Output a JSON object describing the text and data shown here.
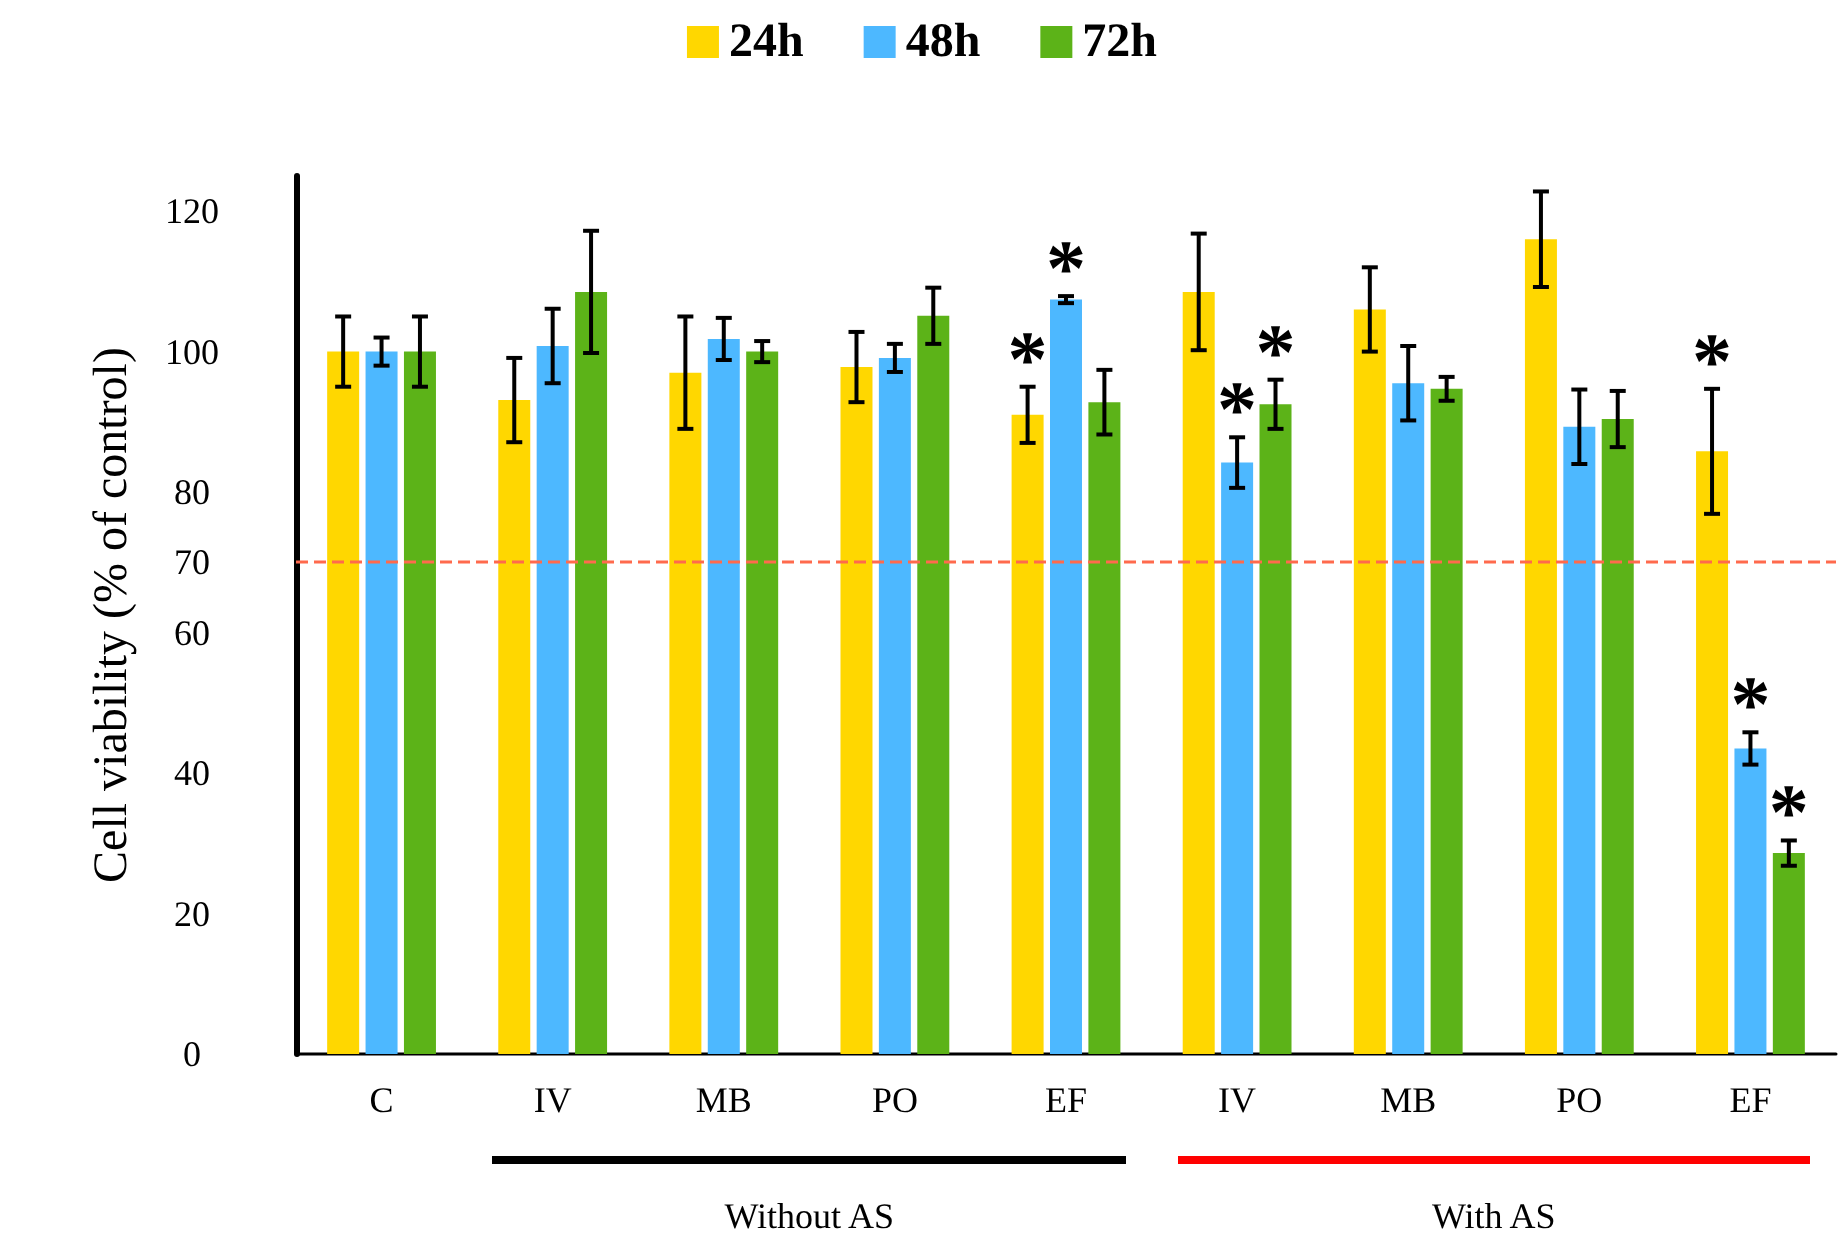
{
  "chart_data": {
    "type": "bar",
    "ylabel": "Cell viability (% of control)",
    "categories": [
      "C",
      "IV",
      "MB",
      "PO",
      "EF",
      "IV",
      "MB",
      "PO",
      "EF"
    ],
    "series": [
      {
        "name": "24h",
        "color": "#ffd700",
        "values": [
          100,
          93.1,
          97,
          97.8,
          91,
          108.5,
          106,
          116,
          85.8
        ],
        "errors": [
          5,
          6,
          8,
          5,
          4,
          8.3,
          6,
          6.8,
          8.9
        ],
        "value_labels": [
          null,
          null,
          null,
          null,
          "*",
          null,
          null,
          null,
          "*"
        ]
      },
      {
        "name": "48h",
        "color": "#4db8ff",
        "values": [
          100,
          100.8,
          101.8,
          99.1,
          107.4,
          84.2,
          95.5,
          89.3,
          43.5
        ],
        "errors": [
          2,
          5.3,
          3,
          2,
          0.5,
          3.6,
          5.3,
          5.3,
          2.3
        ],
        "value_labels": [
          null,
          null,
          null,
          null,
          "*",
          "*",
          null,
          null,
          "*"
        ]
      },
      {
        "name": "72h",
        "color": "#5cb318",
        "values": [
          100,
          108.5,
          100,
          105.1,
          92.8,
          92.5,
          94.7,
          90.4,
          28.6
        ],
        "errors": [
          5,
          8.7,
          1.5,
          4,
          4.6,
          3.5,
          1.7,
          4,
          1.8
        ],
        "value_labels": [
          null,
          null,
          null,
          null,
          null,
          "*",
          null,
          null,
          "*"
        ]
      }
    ],
    "ylim": [
      0,
      125
    ],
    "yticks": [
      0,
      20,
      40,
      60,
      70,
      80,
      100,
      120
    ],
    "ref_lines": [
      {
        "axis": "y",
        "value": 70,
        "color": "#ff6a4d",
        "line_style": "dashed"
      }
    ],
    "annotations": [
      "Without AS",
      "With AS"
    ],
    "grid": false,
    "legend": "top"
  }
}
